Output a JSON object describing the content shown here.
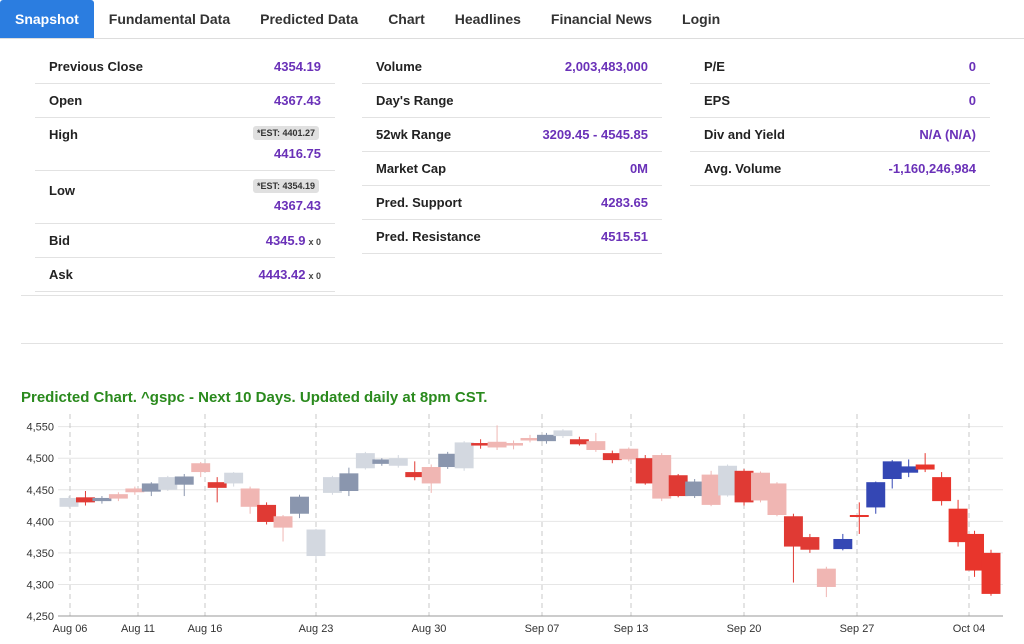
{
  "tabs": [
    {
      "label": "Snapshot",
      "active": true
    },
    {
      "label": "Fundamental Data"
    },
    {
      "label": "Predicted Data"
    },
    {
      "label": "Chart"
    },
    {
      "label": "Headlines"
    },
    {
      "label": "Financial News"
    },
    {
      "label": "Login"
    }
  ],
  "col1": {
    "previous_close": {
      "label": "Previous Close",
      "value": "4354.19"
    },
    "open": {
      "label": "Open",
      "value": "4367.43"
    },
    "high": {
      "label": "High",
      "est": "*EST: 4401.27",
      "value": "4416.75"
    },
    "low": {
      "label": "Low",
      "est": "*EST: 4354.19",
      "value": "4367.43"
    },
    "bid": {
      "label": "Bid",
      "value": "4345.9",
      "size": "x 0"
    },
    "ask": {
      "label": "Ask",
      "value": "4443.42",
      "size": "x 0"
    }
  },
  "col2": {
    "volume": {
      "label": "Volume",
      "value": "2,003,483,000"
    },
    "days_range": {
      "label": "Day's Range",
      "value": ""
    },
    "wk52_range": {
      "label": "52wk Range",
      "value": "3209.45 - 4545.85"
    },
    "market_cap": {
      "label": "Market Cap",
      "value": "0M"
    },
    "pred_support": {
      "label": "Pred. Support",
      "value": "4283.65"
    },
    "pred_resistance": {
      "label": "Pred. Resistance",
      "value": "4515.51"
    }
  },
  "col3": {
    "pe": {
      "label": "P/E",
      "value": "0"
    },
    "eps": {
      "label": "EPS",
      "value": "0"
    },
    "div_yield": {
      "label": "Div and Yield",
      "value": "N/A (N/A)"
    },
    "avg_volume": {
      "label": "Avg. Volume",
      "value": "-1,160,246,984"
    }
  },
  "chart_title": "Predicted Chart. ^gspc - Next 10 Days. Updated daily at 8pm CST.",
  "colors": {
    "up_gray": "#8a96ae",
    "up_gray_light": "#d3d8e0",
    "down_red": "#e03a34",
    "down_red_light": "#f0b6b3",
    "pred_blue": "#3447b4",
    "pred_red": "#e8352c",
    "title_green": "#2a8a1d",
    "value_purple": "#6a31b8",
    "tab_blue": "#2b7de0"
  },
  "chart_data": {
    "type": "candlestick",
    "title": "Predicted Chart. ^gspc - Next 10 Days. Updated daily at 8pm CST.",
    "ylim": [
      4250,
      4570
    ],
    "y_ticks": [
      "4,250",
      "4,300",
      "4,350",
      "4,400",
      "4,450",
      "4,500",
      "4,550"
    ],
    "x_ticks": [
      "Aug 06",
      "Aug 11",
      "Aug 16",
      "Aug 23",
      "Aug 30",
      "Sep 07",
      "Sep 13",
      "Sep 20",
      "Sep 27",
      "Oct 04"
    ],
    "series": [
      {
        "kind": "candles",
        "values": [
          {
            "o": 4423,
            "c": 4437,
            "h": 4440,
            "l": 4422,
            "s": "gl"
          },
          {
            "o": 4438,
            "c": 4430,
            "h": 4448,
            "l": 4425,
            "s": "r"
          },
          {
            "o": 4432,
            "c": 4437,
            "h": 4440,
            "l": 4428,
            "s": "g"
          },
          {
            "o": 4436,
            "c": 4443,
            "h": 4446,
            "l": 4432,
            "s": "rl"
          },
          {
            "o": 4446,
            "c": 4452,
            "h": 4455,
            "l": 4442,
            "s": "rl"
          },
          {
            "o": 4447,
            "c": 4460,
            "h": 4462,
            "l": 4440,
            "s": "g"
          },
          {
            "o": 4450,
            "c": 4470,
            "h": 4472,
            "l": 4448,
            "s": "gl"
          },
          {
            "o": 4458,
            "c": 4471,
            "h": 4475,
            "l": 4440,
            "s": "g"
          },
          {
            "o": 4492,
            "c": 4478,
            "h": 4494,
            "l": 4470,
            "s": "rl"
          },
          {
            "o": 4453,
            "c": 4462,
            "h": 4470,
            "l": 4430,
            "s": "r"
          },
          {
            "o": 4460,
            "c": 4477,
            "h": 4478,
            "l": 4455,
            "s": "gl"
          },
          {
            "o": 4423,
            "c": 4452,
            "h": 4455,
            "l": 4412,
            "s": "rl"
          },
          {
            "o": 4399,
            "c": 4426,
            "h": 4430,
            "l": 4395,
            "s": "r"
          },
          {
            "o": 4390,
            "c": 4408,
            "h": 4410,
            "l": 4368,
            "s": "rl"
          },
          {
            "o": 4412,
            "c": 4439,
            "h": 4442,
            "l": 4405,
            "s": "g"
          },
          {
            "o": 4345,
            "c": 4387,
            "h": 4388,
            "l": 4340,
            "s": "gl"
          },
          {
            "o": 4445,
            "c": 4470,
            "h": 4472,
            "l": 4442,
            "s": "gl"
          },
          {
            "o": 4448,
            "c": 4476,
            "h": 4485,
            "l": 4440,
            "s": "g"
          },
          {
            "o": 4484,
            "c": 4508,
            "h": 4510,
            "l": 4482,
            "s": "gl"
          },
          {
            "o": 4491,
            "c": 4498,
            "h": 4500,
            "l": 4488,
            "s": "g"
          },
          {
            "o": 4488,
            "c": 4500,
            "h": 4505,
            "l": 4485,
            "s": "gl"
          },
          {
            "o": 4470,
            "c": 4478,
            "h": 4495,
            "l": 4465,
            "s": "r"
          },
          {
            "o": 4460,
            "c": 4486,
            "h": 4490,
            "l": 4445,
            "s": "rl"
          },
          {
            "o": 4486,
            "c": 4507,
            "h": 4510,
            "l": 4483,
            "s": "g"
          },
          {
            "o": 4484,
            "c": 4525,
            "h": 4527,
            "l": 4480,
            "s": "gl"
          },
          {
            "o": 4524,
            "c": 4520,
            "h": 4530,
            "l": 4515,
            "s": "r"
          },
          {
            "o": 4526,
            "c": 4517,
            "h": 4552,
            "l": 4513,
            "s": "rl"
          },
          {
            "o": 4524,
            "c": 4520,
            "h": 4528,
            "l": 4514,
            "s": "rl"
          },
          {
            "o": 4532,
            "c": 4528,
            "h": 4537,
            "l": 4525,
            "s": "rl"
          },
          {
            "o": 4527,
            "c": 4537,
            "h": 4540,
            "l": 4523,
            "s": "g"
          },
          {
            "o": 4535,
            "c": 4544,
            "h": 4546,
            "l": 4532,
            "s": "gl"
          },
          {
            "o": 4530,
            "c": 4522,
            "h": 4534,
            "l": 4520,
            "s": "r"
          },
          {
            "o": 4527,
            "c": 4513,
            "h": 4540,
            "l": 4510,
            "s": "rl"
          },
          {
            "o": 4508,
            "c": 4497,
            "h": 4512,
            "l": 4492,
            "s": "r"
          },
          {
            "o": 4515,
            "c": 4498,
            "h": 4517,
            "l": 4495,
            "s": "rl"
          },
          {
            "o": 4500,
            "c": 4460,
            "h": 4505,
            "l": 4458,
            "s": "r"
          },
          {
            "o": 4505,
            "c": 4436,
            "h": 4508,
            "l": 4432,
            "s": "rl"
          },
          {
            "o": 4473,
            "c": 4440,
            "h": 4475,
            "l": 4438,
            "s": "r"
          },
          {
            "o": 4440,
            "c": 4463,
            "h": 4467,
            "l": 4437,
            "s": "g"
          },
          {
            "o": 4474,
            "c": 4426,
            "h": 4480,
            "l": 4424,
            "s": "rl"
          },
          {
            "o": 4441,
            "c": 4488,
            "h": 4490,
            "l": 4439,
            "s": "gl"
          },
          {
            "o": 4480,
            "c": 4430,
            "h": 4483,
            "l": 4425,
            "s": "r"
          },
          {
            "o": 4477,
            "c": 4433,
            "h": 4479,
            "l": 4430,
            "s": "rl"
          },
          {
            "o": 4460,
            "c": 4410,
            "h": 4462,
            "l": 4408,
            "s": "rl"
          },
          {
            "o": 4408,
            "c": 4360,
            "h": 4412,
            "l": 4303,
            "s": "r"
          },
          {
            "o": 4375,
            "c": 4355,
            "h": 4380,
            "l": 4350,
            "s": "r"
          },
          {
            "o": 4325,
            "c": 4296,
            "h": 4328,
            "l": 4280,
            "s": "rl"
          },
          {
            "o": 4356,
            "c": 4372,
            "h": 4380,
            "l": 4354,
            "s": "b"
          },
          {
            "o": 4410,
            "c": 4410,
            "h": 4430,
            "l": 4380,
            "s": "pr"
          },
          {
            "o": 4422,
            "c": 4462,
            "h": 4463,
            "l": 4412,
            "s": "b"
          },
          {
            "o": 4467,
            "c": 4495,
            "h": 4497,
            "l": 4452,
            "s": "b"
          },
          {
            "o": 4477,
            "c": 4487,
            "h": 4498,
            "l": 4470,
            "s": "b"
          },
          {
            "o": 4490,
            "c": 4482,
            "h": 4508,
            "l": 4478,
            "s": "pr"
          },
          {
            "o": 4470,
            "c": 4432,
            "h": 4478,
            "l": 4425,
            "s": "pr"
          },
          {
            "o": 4420,
            "c": 4367,
            "h": 4434,
            "l": 4360,
            "s": "pr"
          },
          {
            "o": 4380,
            "c": 4322,
            "h": 4385,
            "l": 4312,
            "s": "pr"
          },
          {
            "o": 4350,
            "c": 4285,
            "h": 4355,
            "l": 4282,
            "s": "pr"
          }
        ]
      }
    ]
  }
}
